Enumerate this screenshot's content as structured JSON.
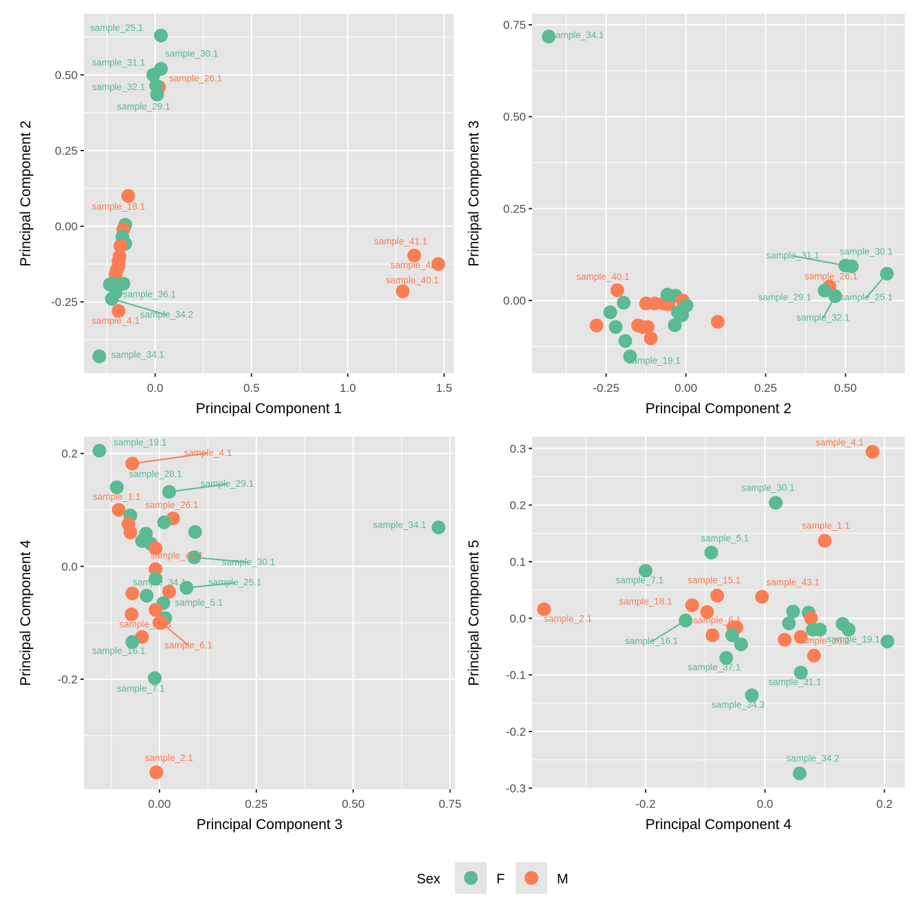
{
  "colors": {
    "F": "#59BA94",
    "M": "#FB7D53",
    "panel_bg": "#E5E5E5",
    "grid": "#FFFFFF"
  },
  "legend": {
    "title": "Sex",
    "items": [
      {
        "key": "F",
        "label": "F"
      },
      {
        "key": "M",
        "label": "M"
      }
    ],
    "position": "bottom"
  },
  "chart_data": [
    {
      "type": "scatter",
      "title": "",
      "xlabel": "Principal Component 1",
      "ylabel": "Principal Component 2",
      "xlim": [
        -0.37,
        1.55
      ],
      "ylim": [
        -0.486,
        0.702
      ],
      "xticks": [
        0.0,
        0.5,
        1.0,
        1.5
      ],
      "xtick_labels": [
        "0.0",
        "0.5",
        "1.0",
        "1.5"
      ],
      "yticks": [
        -0.25,
        0.0,
        0.25,
        0.5
      ],
      "ytick_labels": [
        "-0.25",
        "0.00",
        "0.25",
        "0.50"
      ],
      "grid": true,
      "points": [
        {
          "x": 0.03,
          "y": 0.63,
          "sex": "F",
          "label": "sample_25.1",
          "lx": -0.2,
          "ly": 0.645
        },
        {
          "x": 0.03,
          "y": 0.52,
          "sex": "F",
          "label": "sample_30.1",
          "lx": 0.19,
          "ly": 0.56
        },
        {
          "x": -0.01,
          "y": 0.5,
          "sex": "F",
          "label": "sample_31.1",
          "lx": -0.19,
          "ly": 0.53
        },
        {
          "x": 0.02,
          "y": 0.46,
          "sex": "M",
          "label": "sample_26.1",
          "lx": 0.21,
          "ly": 0.478
        },
        {
          "x": 0.005,
          "y": 0.465,
          "sex": "F",
          "label": "sample_32.1",
          "lx": -0.19,
          "ly": 0.45
        },
        {
          "x": 0.01,
          "y": 0.435,
          "sex": "F",
          "label": "sample_29.1",
          "lx": -0.06,
          "ly": 0.385
        },
        {
          "x": -0.14,
          "y": 0.1,
          "sex": "M",
          "label": "sample_18.1",
          "lx": -0.19,
          "ly": 0.055
        },
        {
          "x": -0.155,
          "y": 0.005,
          "sex": "F",
          "label": ""
        },
        {
          "x": -0.165,
          "y": -0.01,
          "sex": "M",
          "label": ""
        },
        {
          "x": -0.17,
          "y": -0.035,
          "sex": "F",
          "label": ""
        },
        {
          "x": -0.155,
          "y": -0.058,
          "sex": "F",
          "label": ""
        },
        {
          "x": -0.18,
          "y": -0.065,
          "sex": "M",
          "label": ""
        },
        {
          "x": -0.185,
          "y": -0.1,
          "sex": "M",
          "label": ""
        },
        {
          "x": -0.19,
          "y": -0.115,
          "sex": "M",
          "label": ""
        },
        {
          "x": -0.19,
          "y": -0.13,
          "sex": "M",
          "label": ""
        },
        {
          "x": -0.2,
          "y": -0.145,
          "sex": "M",
          "label": ""
        },
        {
          "x": -0.205,
          "y": -0.16,
          "sex": "M",
          "label": ""
        },
        {
          "x": -0.235,
          "y": -0.192,
          "sex": "F",
          "label": ""
        },
        {
          "x": -0.21,
          "y": -0.19,
          "sex": "F",
          "label": ""
        },
        {
          "x": -0.165,
          "y": -0.19,
          "sex": "F",
          "label": ""
        },
        {
          "x": -0.205,
          "y": -0.22,
          "sex": "F",
          "label": "sample_36.1",
          "lx": -0.03,
          "ly": -0.235
        },
        {
          "x": -0.225,
          "y": -0.24,
          "sex": "F",
          "label": "sample_34.2",
          "lx": 0.06,
          "ly": -0.302,
          "leader": true
        },
        {
          "x": -0.19,
          "y": -0.28,
          "sex": "M",
          "label": "sample_4.1",
          "lx": -0.205,
          "ly": -0.323
        },
        {
          "x": -0.29,
          "y": -0.43,
          "sex": "F",
          "label": "sample_34.1",
          "lx": -0.09,
          "ly": -0.435
        },
        {
          "x": 1.345,
          "y": -0.097,
          "sex": "M",
          "label": "sample_41.1",
          "lx": 1.275,
          "ly": -0.06
        },
        {
          "x": 1.47,
          "y": -0.125,
          "sex": "M",
          "label": "sample_42.1",
          "lx": 1.36,
          "ly": -0.138
        },
        {
          "x": 1.285,
          "y": -0.215,
          "sex": "M",
          "label": "sample_40.1",
          "lx": 1.335,
          "ly": -0.188
        }
      ]
    },
    {
      "type": "scatter",
      "title": "",
      "xlabel": "Principal Component 2",
      "ylabel": "Principal Component 3",
      "xlim": [
        -0.482,
        0.686
      ],
      "ylim": [
        -0.198,
        0.78
      ],
      "xticks": [
        -0.25,
        0.0,
        0.25,
        0.5
      ],
      "xtick_labels": [
        "-0.25",
        "0.00",
        "0.25",
        "0.50"
      ],
      "yticks": [
        0.0,
        0.25,
        0.5,
        0.75
      ],
      "ytick_labels": [
        "0.00",
        "0.25",
        "0.50",
        "0.75"
      ],
      "grid": true,
      "points": [
        {
          "x": -0.43,
          "y": 0.718,
          "sex": "F",
          "label": "sample_34.1",
          "lx": -0.34,
          "ly": 0.714
        },
        {
          "x": -0.215,
          "y": 0.028,
          "sex": "M",
          "label": "sample_40.1",
          "lx": -0.26,
          "ly": 0.056
        },
        {
          "x": -0.195,
          "y": -0.006,
          "sex": "F",
          "label": ""
        },
        {
          "x": -0.237,
          "y": -0.032,
          "sex": "F",
          "label": ""
        },
        {
          "x": -0.28,
          "y": -0.068,
          "sex": "M",
          "label": ""
        },
        {
          "x": -0.22,
          "y": -0.072,
          "sex": "F",
          "label": ""
        },
        {
          "x": -0.19,
          "y": -0.11,
          "sex": "F",
          "label": ""
        },
        {
          "x": -0.175,
          "y": -0.152,
          "sex": "F",
          "label": "sample_19.1",
          "lx": -0.1,
          "ly": -0.172
        },
        {
          "x": -0.125,
          "y": -0.008,
          "sex": "M",
          "label": ""
        },
        {
          "x": -0.098,
          "y": -0.008,
          "sex": "M",
          "label": ""
        },
        {
          "x": -0.07,
          "y": -0.008,
          "sex": "M",
          "label": ""
        },
        {
          "x": -0.055,
          "y": -0.01,
          "sex": "M",
          "label": ""
        },
        {
          "x": -0.15,
          "y": -0.068,
          "sex": "M",
          "label": ""
        },
        {
          "x": -0.135,
          "y": -0.072,
          "sex": "M",
          "label": ""
        },
        {
          "x": -0.12,
          "y": -0.072,
          "sex": "M",
          "label": ""
        },
        {
          "x": -0.11,
          "y": -0.103,
          "sex": "M",
          "label": ""
        },
        {
          "x": -0.058,
          "y": 0.016,
          "sex": "F",
          "label": ""
        },
        {
          "x": -0.032,
          "y": 0.013,
          "sex": "F",
          "label": ""
        },
        {
          "x": -0.01,
          "y": 0.0,
          "sex": "M",
          "label": ""
        },
        {
          "x": 0.002,
          "y": -0.014,
          "sex": "F",
          "label": ""
        },
        {
          "x": -0.025,
          "y": -0.032,
          "sex": "F",
          "label": ""
        },
        {
          "x": -0.012,
          "y": -0.04,
          "sex": "F",
          "label": ""
        },
        {
          "x": -0.035,
          "y": -0.067,
          "sex": "F",
          "label": ""
        },
        {
          "x": 0.1,
          "y": -0.058,
          "sex": "M",
          "label": ""
        },
        {
          "x": 0.5,
          "y": 0.095,
          "sex": "F",
          "label": "sample_31.1",
          "lx": 0.335,
          "ly": 0.114,
          "leader": true
        },
        {
          "x": 0.52,
          "y": 0.093,
          "sex": "F",
          "label": "sample_30.1",
          "lx": 0.565,
          "ly": 0.125
        },
        {
          "x": 0.63,
          "y": 0.073,
          "sex": "F",
          "label": "sample_25.1",
          "lx": 0.565,
          "ly": 0.0,
          "leader": true
        },
        {
          "x": 0.45,
          "y": 0.038,
          "sex": "M",
          "label": "sample_26.1",
          "lx": 0.455,
          "ly": 0.057
        },
        {
          "x": 0.435,
          "y": 0.027,
          "sex": "F",
          "label": "sample_29.1",
          "lx": 0.31,
          "ly": 0.0
        },
        {
          "x": 0.468,
          "y": 0.012,
          "sex": "F",
          "label": "sample_32.1",
          "lx": 0.43,
          "ly": -0.055,
          "leader": true
        }
      ]
    },
    {
      "type": "scatter",
      "title": "",
      "xlabel": "Principal Component 3",
      "ylabel": "Principal Component 4",
      "xlim": [
        -0.195,
        0.763
      ],
      "ylim": [
        -0.395,
        0.23
      ],
      "xticks": [
        0.0,
        0.25,
        0.5,
        0.75
      ],
      "xtick_labels": [
        "0.00",
        "0.25",
        "0.50",
        "0.75"
      ],
      "yticks": [
        -0.2,
        0.0,
        0.2
      ],
      "ytick_labels": [
        "-0.2",
        "0.0",
        "0.2"
      ],
      "grid": true,
      "points": [
        {
          "x": -0.155,
          "y": 0.205,
          "sex": "F",
          "label": "sample_19.1",
          "lx": -0.05,
          "ly": 0.214
        },
        {
          "x": -0.07,
          "y": 0.182,
          "sex": "M",
          "label": "sample_4.1",
          "lx": 0.125,
          "ly": 0.196,
          "leader": true
        },
        {
          "x": -0.11,
          "y": 0.14,
          "sex": "F",
          "label": "sample_28.1",
          "lx": -0.01,
          "ly": 0.158
        },
        {
          "x": 0.025,
          "y": 0.132,
          "sex": "F",
          "label": "sample_29.1",
          "lx": 0.175,
          "ly": 0.141,
          "leader": true
        },
        {
          "x": -0.105,
          "y": 0.1,
          "sex": "M",
          "label": "sample_1.1",
          "lx": -0.11,
          "ly": 0.118
        },
        {
          "x": -0.075,
          "y": 0.09,
          "sex": "F",
          "label": ""
        },
        {
          "x": -0.08,
          "y": 0.075,
          "sex": "M",
          "label": ""
        },
        {
          "x": -0.075,
          "y": 0.06,
          "sex": "M",
          "label": ""
        },
        {
          "x": 0.035,
          "y": 0.085,
          "sex": "M",
          "label": "sample_26.1",
          "lx": 0.032,
          "ly": 0.103
        },
        {
          "x": 0.012,
          "y": 0.078,
          "sex": "F",
          "label": ""
        },
        {
          "x": 0.092,
          "y": 0.061,
          "sex": "F",
          "label": ""
        },
        {
          "x": -0.035,
          "y": 0.058,
          "sex": "F",
          "label": ""
        },
        {
          "x": -0.045,
          "y": 0.045,
          "sex": "F",
          "label": ""
        },
        {
          "x": -0.022,
          "y": 0.04,
          "sex": "F",
          "label": ""
        },
        {
          "x": -0.01,
          "y": 0.032,
          "sex": "M",
          "label": ""
        },
        {
          "x": 0.09,
          "y": 0.016,
          "sex": "F",
          "label": "sample_30.1",
          "lx": 0.23,
          "ly": 0.002,
          "leader": true
        },
        {
          "x": -0.01,
          "y": -0.005,
          "sex": "M",
          "label": "sample_41.1",
          "lx": 0.045,
          "ly": 0.014
        },
        {
          "x": -0.01,
          "y": -0.022,
          "sex": "F",
          "label": "sample_34.1",
          "lx": 0.0,
          "ly": -0.034
        },
        {
          "x": 0.72,
          "y": 0.069,
          "sex": "F",
          "label": "sample_34.1",
          "lx": 0.62,
          "ly": 0.068
        },
        {
          "x": 0.07,
          "y": -0.038,
          "sex": "F",
          "label": "sample_25.1",
          "lx": 0.195,
          "ly": -0.034,
          "leader": true
        },
        {
          "x": -0.07,
          "y": -0.048,
          "sex": "M",
          "label": ""
        },
        {
          "x": -0.033,
          "y": -0.052,
          "sex": "F",
          "label": ""
        },
        {
          "x": 0.025,
          "y": -0.045,
          "sex": "M",
          "label": ""
        },
        {
          "x": 0.01,
          "y": -0.065,
          "sex": "F",
          "label": "sample_5.1",
          "lx": 0.102,
          "ly": -0.07
        },
        {
          "x": -0.072,
          "y": -0.085,
          "sex": "M",
          "label": ""
        },
        {
          "x": -0.01,
          "y": -0.077,
          "sex": "M",
          "label": ""
        },
        {
          "x": 0.015,
          "y": -0.092,
          "sex": "F",
          "label": ""
        },
        {
          "x": 0.0,
          "y": -0.1,
          "sex": "M",
          "label": "sample_13.1",
          "lx": -0.035,
          "ly": -0.108
        },
        {
          "x": -0.045,
          "y": -0.125,
          "sex": "M",
          "label": ""
        },
        {
          "x": -0.07,
          "y": -0.134,
          "sex": "F",
          "label": "sample_16.1",
          "lx": -0.105,
          "ly": -0.155
        },
        {
          "x": 0.005,
          "y": -0.1,
          "sex": "M",
          "label": "sample_6.1",
          "lx": 0.075,
          "ly": -0.145,
          "leader": true
        },
        {
          "x": -0.012,
          "y": -0.198,
          "sex": "F",
          "label": "sample_7.1",
          "lx": -0.048,
          "ly": -0.222
        },
        {
          "x": -0.008,
          "y": -0.365,
          "sex": "M",
          "label": "sample_2.1",
          "lx": 0.025,
          "ly": -0.345
        }
      ]
    },
    {
      "type": "scatter",
      "title": "",
      "xlabel": "Principal Component 4",
      "ylabel": "Principal Component 5",
      "xlim": [
        -0.39,
        0.234
      ],
      "ylim": [
        -0.302,
        0.321
      ],
      "xticks": [
        -0.2,
        0.0,
        0.2
      ],
      "xtick_labels": [
        "-0.2",
        "0.0",
        "0.2"
      ],
      "yticks": [
        -0.3,
        -0.2,
        -0.1,
        0.0,
        0.1,
        0.2,
        0.3
      ],
      "ytick_labels": [
        "-0.3",
        "-0.2",
        "-0.1",
        "0.0",
        "0.1",
        "0.2",
        "0.3"
      ],
      "grid": true,
      "points": [
        {
          "x": 0.18,
          "y": 0.294,
          "sex": "M",
          "label": "sample_4.1",
          "lx": 0.125,
          "ly": 0.305
        },
        {
          "x": 0.018,
          "y": 0.204,
          "sex": "F",
          "label": "sample_30.1",
          "lx": 0.005,
          "ly": 0.225
        },
        {
          "x": 0.1,
          "y": 0.137,
          "sex": "M",
          "label": "sample_1.1",
          "lx": 0.102,
          "ly": 0.158
        },
        {
          "x": -0.09,
          "y": 0.116,
          "sex": "F",
          "label": "sample_5.1",
          "lx": -0.067,
          "ly": 0.136
        },
        {
          "x": -0.2,
          "y": 0.084,
          "sex": "F",
          "label": "sample_7.1",
          "lx": -0.21,
          "ly": 0.062
        },
        {
          "x": -0.37,
          "y": 0.016,
          "sex": "M",
          "label": "sample_2.1",
          "lx": -0.33,
          "ly": -0.006
        },
        {
          "x": -0.08,
          "y": 0.04,
          "sex": "M",
          "label": "sample_15.1",
          "lx": -0.085,
          "ly": 0.062
        },
        {
          "x": -0.005,
          "y": 0.038,
          "sex": "M",
          "label": "sample_43.1",
          "lx": 0.047,
          "ly": 0.058
        },
        {
          "x": -0.122,
          "y": 0.023,
          "sex": "M",
          "label": "sample_18.1",
          "lx": -0.2,
          "ly": 0.024
        },
        {
          "x": -0.097,
          "y": 0.011,
          "sex": "M",
          "label": ""
        },
        {
          "x": -0.133,
          "y": -0.004,
          "sex": "F",
          "label": "sample_16.1",
          "lx": -0.19,
          "ly": -0.046,
          "leader": true
        },
        {
          "x": -0.088,
          "y": -0.03,
          "sex": "M",
          "label": ""
        },
        {
          "x": -0.053,
          "y": -0.016,
          "sex": "M",
          "label": "sample_6.1",
          "lx": -0.08,
          "ly": -0.009
        },
        {
          "x": -0.048,
          "y": -0.016,
          "sex": "M",
          "label": ""
        },
        {
          "x": -0.055,
          "y": -0.03,
          "sex": "F",
          "label": ""
        },
        {
          "x": -0.04,
          "y": -0.046,
          "sex": "F",
          "label": ""
        },
        {
          "x": -0.065,
          "y": -0.07,
          "sex": "F",
          "label": "sample_37.1",
          "lx": -0.085,
          "ly": -0.092
        },
        {
          "x": -0.022,
          "y": -0.136,
          "sex": "F",
          "label": "sample_34.3",
          "lx": -0.045,
          "ly": -0.158
        },
        {
          "x": 0.047,
          "y": 0.012,
          "sex": "F",
          "label": ""
        },
        {
          "x": 0.073,
          "y": 0.01,
          "sex": "F",
          "label": ""
        },
        {
          "x": 0.077,
          "y": 0.0,
          "sex": "M",
          "label": ""
        },
        {
          "x": 0.04,
          "y": -0.009,
          "sex": "F",
          "label": ""
        },
        {
          "x": 0.08,
          "y": -0.02,
          "sex": "F",
          "label": ""
        },
        {
          "x": 0.092,
          "y": -0.02,
          "sex": "F",
          "label": ""
        },
        {
          "x": 0.033,
          "y": -0.038,
          "sex": "M",
          "label": ""
        },
        {
          "x": 0.06,
          "y": -0.033,
          "sex": "M",
          "label": "sample_26.1",
          "lx": 0.098,
          "ly": -0.045
        },
        {
          "x": 0.13,
          "y": -0.01,
          "sex": "F",
          "label": ""
        },
        {
          "x": 0.14,
          "y": -0.02,
          "sex": "F",
          "label": ""
        },
        {
          "x": 0.082,
          "y": -0.066,
          "sex": "M",
          "label": ""
        },
        {
          "x": 0.205,
          "y": -0.041,
          "sex": "F",
          "label": "sample_19.1",
          "lx": 0.148,
          "ly": -0.043
        },
        {
          "x": 0.06,
          "y": -0.096,
          "sex": "F",
          "label": "sample_31.1",
          "lx": 0.05,
          "ly": -0.118
        },
        {
          "x": 0.058,
          "y": -0.274,
          "sex": "F",
          "label": "sample_34.2",
          "lx": 0.08,
          "ly": -0.253
        }
      ]
    }
  ]
}
